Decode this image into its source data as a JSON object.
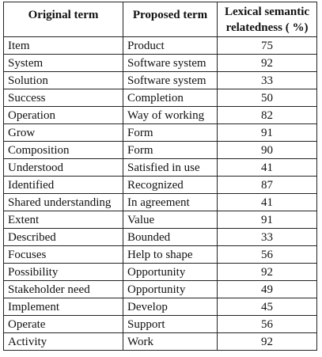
{
  "table": {
    "headers": [
      "Original term",
      "Proposed term",
      "Lexical semantic relatedness ( %)"
    ],
    "rows": [
      [
        "Item",
        "Product",
        "75"
      ],
      [
        "System",
        "Software system",
        "92"
      ],
      [
        "Solution",
        "Software system",
        "33"
      ],
      [
        "Success",
        "Completion",
        "50"
      ],
      [
        "Operation",
        "Way of working",
        "82"
      ],
      [
        "Grow",
        "Form",
        "91"
      ],
      [
        "Composition",
        "Form",
        "90"
      ],
      [
        "Understood",
        "Satisfied in use",
        "41"
      ],
      [
        "Identified",
        "Recognized",
        "87"
      ],
      [
        "Shared understanding",
        "In agreement",
        "41"
      ],
      [
        "Extent",
        "Value",
        "91"
      ],
      [
        "Described",
        "Bounded",
        "33"
      ],
      [
        "Focuses",
        "Help to shape",
        "56"
      ],
      [
        "Possibility",
        "Opportunity",
        "92"
      ],
      [
        "Stakeholder need",
        "Opportunity",
        "49"
      ],
      [
        "Implement",
        "Develop",
        "45"
      ],
      [
        "Operate",
        "Support",
        "56"
      ],
      [
        "Activity",
        "Work",
        "92"
      ]
    ]
  }
}
